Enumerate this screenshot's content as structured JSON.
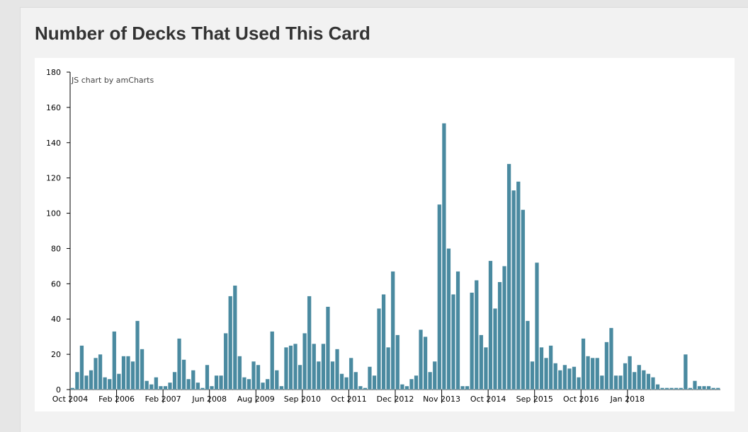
{
  "page": {
    "title": "Number of Decks That Used This Card",
    "credit": "JS chart by amCharts"
  },
  "colors": {
    "bar": "#4a8aa0",
    "bar_stroke": "#ffffff",
    "axis": "#000000"
  },
  "chart_data": {
    "type": "bar",
    "title": "Number of Decks That Used This Card",
    "xlabel": "",
    "ylabel": "",
    "ylim": [
      0,
      180
    ],
    "y_ticks": [
      0,
      20,
      40,
      60,
      80,
      100,
      120,
      140,
      160,
      180
    ],
    "grid": false,
    "x_axis_labels": [
      {
        "label": "Oct 2004",
        "index": 0
      },
      {
        "label": "Feb 2006",
        "index": 10
      },
      {
        "label": "Feb 2007",
        "index": 20
      },
      {
        "label": "Jun 2008",
        "index": 30
      },
      {
        "label": "Aug 2009",
        "index": 40
      },
      {
        "label": "Sep 2010",
        "index": 50
      },
      {
        "label": "Oct 2011",
        "index": 60
      },
      {
        "label": "Dec 2012",
        "index": 70
      },
      {
        "label": "Nov 2013",
        "index": 80
      },
      {
        "label": "Oct 2014",
        "index": 90
      },
      {
        "label": "Sep 2015",
        "index": 100
      },
      {
        "label": "Oct 2016",
        "index": 110
      },
      {
        "label": "Jan 2018",
        "index": 120
      }
    ],
    "values": [
      1,
      10,
      25,
      8,
      11,
      18,
      20,
      7,
      6,
      33,
      9,
      19,
      19,
      16,
      39,
      23,
      5,
      3,
      7,
      2,
      2,
      4,
      10,
      29,
      17,
      6,
      11,
      4,
      1,
      14,
      2,
      8,
      8,
      32,
      53,
      59,
      19,
      7,
      6,
      16,
      14,
      4,
      6,
      33,
      11,
      2,
      24,
      25,
      26,
      14,
      32,
      53,
      26,
      16,
      26,
      47,
      16,
      23,
      9,
      7,
      18,
      10,
      2,
      1,
      13,
      8,
      46,
      54,
      24,
      67,
      31,
      3,
      2,
      6,
      8,
      34,
      30,
      10,
      16,
      105,
      151,
      80,
      54,
      67,
      2,
      2,
      55,
      62,
      31,
      24,
      73,
      46,
      61,
      70,
      128,
      113,
      118,
      102,
      39,
      16,
      72,
      24,
      18,
      25,
      15,
      11,
      14,
      12,
      13,
      7,
      29,
      19,
      18,
      18,
      8,
      27,
      35,
      8,
      8,
      15,
      19,
      10,
      14,
      11,
      9,
      7,
      3,
      1,
      1,
      1,
      1,
      1,
      20,
      1,
      5,
      2,
      2,
      2,
      1,
      1
    ]
  }
}
